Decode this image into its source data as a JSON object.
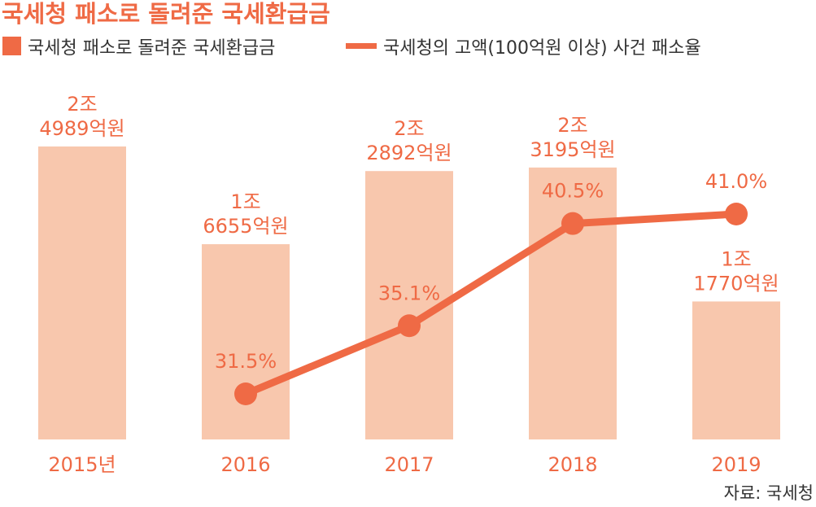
{
  "chart_data": {
    "type": "bar",
    "title": "국세청 패소로 돌려준 국세환급금",
    "categories": [
      "2015년",
      "2016",
      "2017",
      "2018",
      "2019"
    ],
    "series": [
      {
        "name": "국세청 패소로 돌려준 국세환급금",
        "type": "bar",
        "values": [
          24989,
          16655,
          22892,
          23195,
          11770
        ],
        "value_labels": [
          [
            "2조",
            "4989억원"
          ],
          [
            "1조",
            "6655억원"
          ],
          [
            "2조",
            "2892억원"
          ],
          [
            "2조",
            "3195억원"
          ],
          [
            "1조",
            "1770억원"
          ]
        ],
        "color": "#f8c7ad"
      },
      {
        "name": "국세청의 고액(100억원 이상) 사건 패소율",
        "type": "line",
        "x": [
          "2016",
          "2017",
          "2018",
          "2019"
        ],
        "values": [
          31.5,
          35.1,
          40.5,
          41.0
        ],
        "value_labels": [
          "31.5%",
          "35.1%",
          "40.5%",
          "41.0%"
        ],
        "color": "#ef6a45"
      }
    ],
    "legend_position": "top-left",
    "grid": false,
    "source": "자료: 국세청"
  },
  "colors": {
    "accent": "#ef6a45",
    "bar": "#f8c7ad",
    "text": "#333333"
  }
}
